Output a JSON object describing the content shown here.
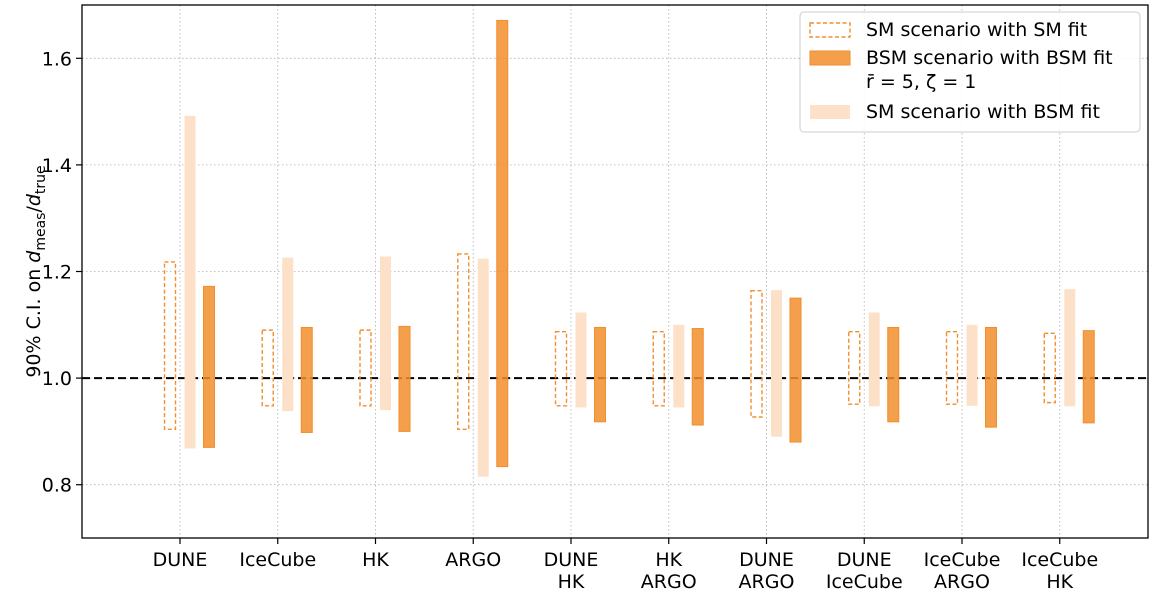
{
  "chart_data": {
    "type": "bar",
    "title": "",
    "xlabel": "",
    "ylabel": {
      "prefix": "90% C.I. on ",
      "num_var": "d",
      "num_sub": "meas",
      "sep": "/",
      "den_var": "d",
      "den_sub": "true"
    },
    "ylim": [
      0.7,
      1.7
    ],
    "yticks": [
      0.8,
      1.0,
      1.2,
      1.4,
      1.6
    ],
    "yticklabels": [
      "0.8",
      "1.0",
      "1.2",
      "1.4",
      "1.6"
    ],
    "grid": true,
    "reference_line": {
      "y": 1.0,
      "style": "dashed",
      "color": "#000000"
    },
    "categories": [
      [
        "DUNE"
      ],
      [
        "IceCube"
      ],
      [
        "HK"
      ],
      [
        "ARGO"
      ],
      [
        "DUNE",
        "HK"
      ],
      [
        "HK",
        "ARGO"
      ],
      [
        "DUNE",
        "ARGO"
      ],
      [
        "DUNE",
        "IceCube"
      ],
      [
        "IceCube",
        "ARGO"
      ],
      [
        "IceCube",
        "HK"
      ]
    ],
    "legend": {
      "position": "top-right",
      "entries": [
        {
          "series": 0,
          "lines": [
            "SM scenario with SM fit"
          ]
        },
        {
          "series": 1,
          "lines": [
            "BSM scenario with BSM fit",
            "r̄ = 5, ζ = 1"
          ]
        },
        {
          "series": 2,
          "lines": [
            "SM scenario with BSM fit"
          ]
        }
      ]
    },
    "series": [
      {
        "style": "dashed-outline",
        "color": "#f28e2b",
        "intervals": [
          [
            0.904,
            1.218
          ],
          [
            0.948,
            1.09
          ],
          [
            0.948,
            1.09
          ],
          [
            0.904,
            1.233
          ],
          [
            0.948,
            1.087
          ],
          [
            0.948,
            1.087
          ],
          [
            0.927,
            1.164
          ],
          [
            0.951,
            1.087
          ],
          [
            0.951,
            1.087
          ],
          [
            0.954,
            1.084
          ]
        ]
      },
      {
        "style": "solid",
        "color": "#f28e2b",
        "intervals": [
          [
            0.87,
            1.172
          ],
          [
            0.898,
            1.095
          ],
          [
            0.9,
            1.097
          ],
          [
            0.834,
            1.671
          ],
          [
            0.918,
            1.095
          ],
          [
            0.912,
            1.093
          ],
          [
            0.88,
            1.15
          ],
          [
            0.918,
            1.095
          ],
          [
            0.908,
            1.095
          ],
          [
            0.916,
            1.089
          ]
        ]
      },
      {
        "style": "light",
        "color": "#fde0c8",
        "intervals": [
          [
            0.868,
            1.492
          ],
          [
            0.938,
            1.226
          ],
          [
            0.94,
            1.228
          ],
          [
            0.815,
            1.224
          ],
          [
            0.945,
            1.123
          ],
          [
            0.945,
            1.1
          ],
          [
            0.89,
            1.165
          ],
          [
            0.947,
            1.123
          ],
          [
            0.948,
            1.1
          ],
          [
            0.947,
            1.167
          ]
        ]
      }
    ]
  }
}
